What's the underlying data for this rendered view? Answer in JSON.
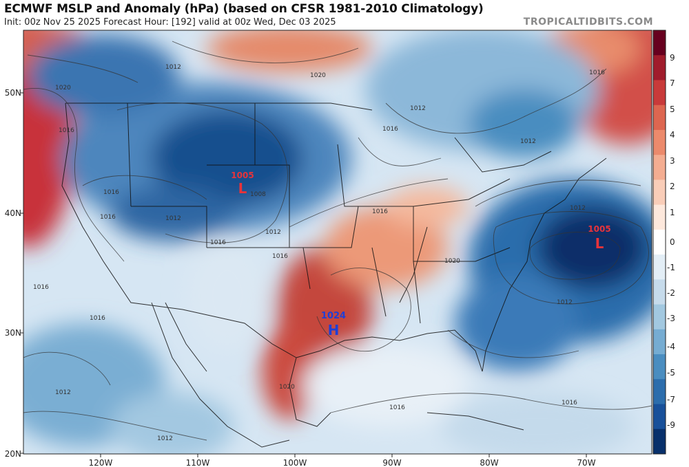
{
  "header": {
    "title": "ECMWF MSLP and Anomaly (hPa) (based on CFSR 1981-2010 Climatology)",
    "subtitle": "Init: 00z Nov 25 2025   Forecast Hour: [192]   valid at 00z Wed, Dec 03 2025",
    "brand": "TROPICALTIDBITS.COM"
  },
  "axes": {
    "lat_labels": [
      "50N",
      "40N",
      "30N",
      "20N"
    ],
    "lon_labels": [
      "120W",
      "110W",
      "100W",
      "90W",
      "80W",
      "70W"
    ]
  },
  "colorbar": {
    "ticks": [
      "9",
      "7",
      "5",
      "4",
      "3",
      "2",
      "1",
      "0",
      "-1",
      "-2",
      "-3",
      "-4",
      "-5",
      "-7",
      "-9"
    ],
    "colors_top_to_bottom": [
      "#67001f",
      "#a01c2c",
      "#c83a3a",
      "#dd6650",
      "#ec8a6c",
      "#f4ad91",
      "#f9cdb8",
      "#fde8dc",
      "#ffffff",
      "#e3eef6",
      "#c6dbeb",
      "#a2c8e0",
      "#76acd2",
      "#4a8dc0",
      "#2c6dac",
      "#18509a",
      "#08306b"
    ]
  },
  "systems": [
    {
      "type": "L",
      "pressure": "1005",
      "color": "#e8333a"
    },
    {
      "type": "H",
      "pressure": "1024",
      "color": "#1f3fd6"
    },
    {
      "type": "L",
      "pressure": "1005",
      "color": "#e8333a"
    }
  ],
  "isobar_labels": [
    "1012",
    "1020",
    "1020",
    "1016",
    "1012",
    "1016",
    "1012",
    "1008",
    "1016",
    "1012",
    "1016",
    "1016",
    "1016",
    "1020",
    "1016",
    "1012",
    "1016",
    "1012",
    "1020",
    "1016",
    "1016",
    "1016",
    "1012",
    "1012",
    "1016",
    "1012",
    "1008"
  ]
}
